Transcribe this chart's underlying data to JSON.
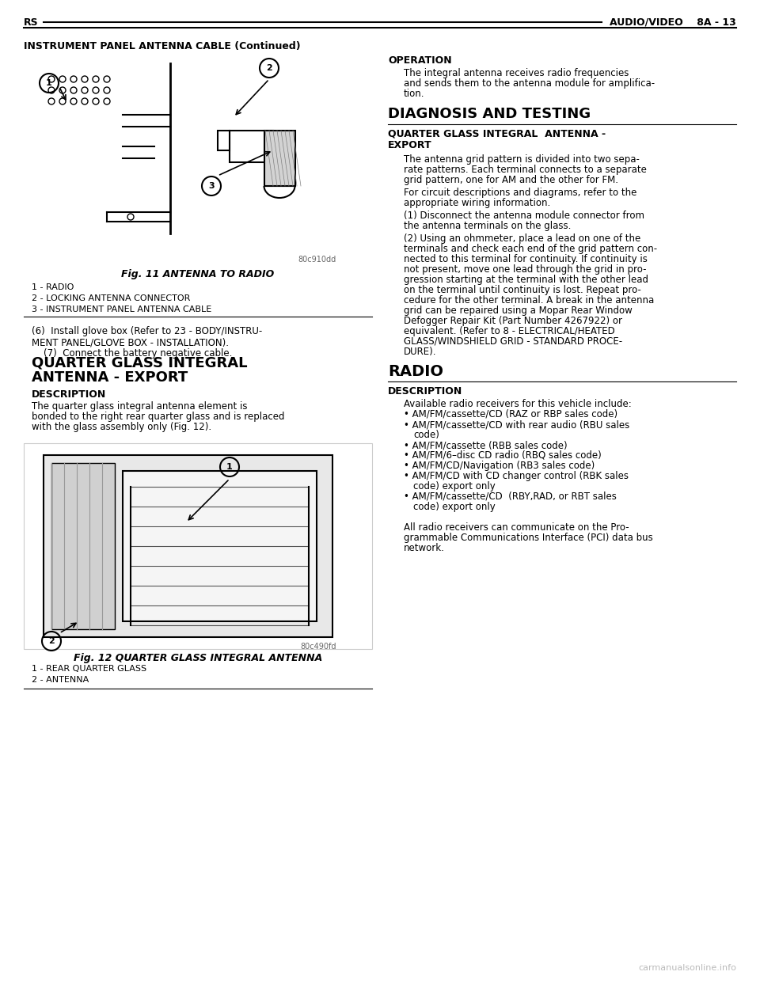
{
  "page_bg": "#ffffff",
  "header_left": "RS",
  "header_right": "AUDIO/VIDEO    8A - 13",
  "section_title": "INSTRUMENT PANEL ANTENNA CABLE (Continued)",
  "fig11_caption": "Fig. 11 ANTENNA TO RADIO",
  "fig11_labels": [
    "1 - RADIO",
    "2 - LOCKING ANTENNA CONNECTOR",
    "3 - INSTRUMENT PANEL ANTENNA CABLE"
  ],
  "fig11_code": "80c910dd",
  "left_body_text": [
    "(6)  Install glove box (Refer to 23 - BODY/INSTRU-",
    "MENT PANEL/GLOVE BOX - INSTALLATION).",
    "    (7)  Connect the battery negative cable."
  ],
  "section2_title": "QUARTER GLASS INTEGRAL\nANTENNA - EXPORT",
  "desc_title": "DESCRIPTION",
  "desc_text": "The quarter glass integral antenna element is bonded to the right rear quarter glass and is replaced with the glass assembly only (Fig. 12).",
  "fig12_caption": "Fig. 12 QUARTER GLASS INTEGRAL ANTENNA",
  "fig12_labels": [
    "1 - REAR QUARTER GLASS",
    "2 - ANTENNA"
  ],
  "fig12_code": "80c490fd",
  "right_col_sections": [
    {
      "title": "OPERATION",
      "text": "The integral antenna receives radio frequencies and sends them to the antenna module for amplification."
    },
    {
      "title": "DIAGNOSIS AND TESTING",
      "level": 1
    },
    {
      "title": "QUARTER GLASS INTEGRAL ANTENNA -\nEXPORT",
      "level": 2,
      "text": "The antenna grid pattern is divided into two separate patterns. Each terminal connects to a separate grid pattern, one for AM and the other for FM.\n\nFor circuit descriptions and diagrams, refer to the appropriate wiring information.\n\n(1) Disconnect the antenna module connector from the antenna terminals on the glass.\n\n(2) Using an ohmmeter, place a lead on one of the terminals and check each end of the grid pattern connected to this terminal for continuity. If continuity is not present, move one lead through the grid in progression starting at the terminal with the other lead on the terminal until continuity is lost. Repeat procedure for the other terminal. A break in the antenna grid can be repaired using a Mopar Rear Window Defogger Repair Kit (Part Number 4267922) or equivalent. (Refer to 8 - ELECTRICAL/HEATED GLASS/WINDSHIELD GRID - STANDARD PROCEDURE)."
    },
    {
      "title": "RADIO",
      "level": 1
    },
    {
      "title": "DESCRIPTION",
      "level": 2,
      "text": "Available radio receivers for this vehicle include:\n• AM/FM/cassette/CD (RAZ or RBP sales code)\n• AM/FM/cassette/CD with rear audio (RBU sales code)\n• AM/FM/cassette (RBB sales code)\n• AM/FM/6–disc CD radio (RBQ sales code)\n• AM/FM/CD/Navigation (RB3 sales code)\n• AM/FM/CD with CD changer control (RBK sales code) export only\n• AM/FM/cassette/CD  (RBY,RAD, or RBT sales code) export only\n\nAll radio receivers can communicate on the Programmable Communications Interface (PCI) data bus network."
    }
  ],
  "watermark": "carmanualsonline.info"
}
